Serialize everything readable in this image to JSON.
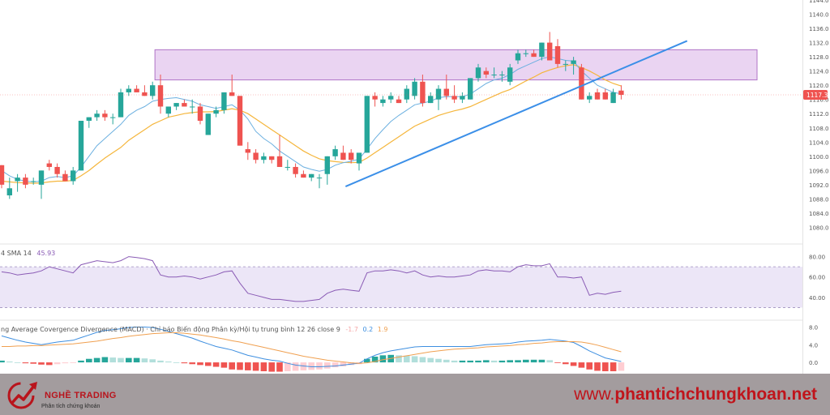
{
  "chart_data": [
    {
      "type": "candlestick",
      "panel": "price",
      "ylim": [
        1076,
        1144
      ],
      "yticks": [
        "1144.0",
        "1140.0",
        "1136.0",
        "1132.0",
        "1128.0",
        "1124.0",
        "1120.0",
        "1116.0",
        "1112.0",
        "1108.0",
        "1104.0",
        "1100.0",
        "1096.0",
        "1092.0",
        "1088.0",
        "1084.0",
        "1080.0"
      ],
      "last_price_label": "1117.3",
      "last_price": 1117.3,
      "candles": [
        {
          "o": 1097.5,
          "h": 1097.5,
          "l": 1091,
          "c": 1092
        },
        {
          "o": 1089,
          "h": 1094,
          "l": 1088,
          "c": 1091
        },
        {
          "o": 1093,
          "h": 1095,
          "l": 1090,
          "c": 1094
        },
        {
          "o": 1094,
          "h": 1095,
          "l": 1091,
          "c": 1092
        },
        {
          "o": 1093,
          "h": 1094,
          "l": 1092,
          "c": 1093
        },
        {
          "o": 1092,
          "h": 1096,
          "l": 1088,
          "c": 1096
        },
        {
          "o": 1098,
          "h": 1099,
          "l": 1096,
          "c": 1097
        },
        {
          "o": 1097,
          "h": 1098,
          "l": 1094,
          "c": 1095
        },
        {
          "o": 1095,
          "h": 1096,
          "l": 1093,
          "c": 1093
        },
        {
          "o": 1093,
          "h": 1097,
          "l": 1092,
          "c": 1096
        },
        {
          "o": 1096,
          "h": 1110,
          "l": 1096,
          "c": 1110
        },
        {
          "o": 1110,
          "h": 1111,
          "l": 1108,
          "c": 1111
        },
        {
          "o": 1111,
          "h": 1113,
          "l": 1110,
          "c": 1112
        },
        {
          "o": 1112,
          "h": 1113,
          "l": 1110,
          "c": 1111
        },
        {
          "o": 1111,
          "h": 1112,
          "l": 1109,
          "c": 1111
        },
        {
          "o": 1111,
          "h": 1119,
          "l": 1111,
          "c": 1118
        },
        {
          "o": 1118,
          "h": 1120,
          "l": 1117,
          "c": 1119
        },
        {
          "o": 1119,
          "h": 1120,
          "l": 1118,
          "c": 1118
        },
        {
          "o": 1118,
          "h": 1120,
          "l": 1117,
          "c": 1117
        },
        {
          "o": 1117,
          "h": 1121,
          "l": 1116,
          "c": 1120
        },
        {
          "o": 1120,
          "h": 1123,
          "l": 1112,
          "c": 1114
        },
        {
          "o": 1112,
          "h": 1114,
          "l": 1111,
          "c": 1114
        },
        {
          "o": 1114,
          "h": 1115,
          "l": 1113,
          "c": 1115
        },
        {
          "o": 1115,
          "h": 1116,
          "l": 1114,
          "c": 1114
        },
        {
          "o": 1114,
          "h": 1116,
          "l": 1112,
          "c": 1114
        },
        {
          "o": 1114,
          "h": 1115,
          "l": 1109,
          "c": 1110
        },
        {
          "o": 1106,
          "h": 1112,
          "l": 1106,
          "c": 1112
        },
        {
          "o": 1112,
          "h": 1114,
          "l": 1111,
          "c": 1113
        },
        {
          "o": 1113,
          "h": 1118,
          "l": 1112,
          "c": 1118
        },
        {
          "o": 1118,
          "h": 1123,
          "l": 1117,
          "c": 1117
        },
        {
          "o": 1117,
          "h": 1117,
          "l": 1103,
          "c": 1103
        },
        {
          "o": 1102,
          "h": 1104,
          "l": 1099,
          "c": 1101
        },
        {
          "o": 1101,
          "h": 1102,
          "l": 1098,
          "c": 1099
        },
        {
          "o": 1099,
          "h": 1101,
          "l": 1098,
          "c": 1100
        },
        {
          "o": 1100,
          "h": 1100,
          "l": 1098,
          "c": 1099
        },
        {
          "o": 1100,
          "h": 1106,
          "l": 1097,
          "c": 1097
        },
        {
          "o": 1097,
          "h": 1099,
          "l": 1096,
          "c": 1097
        },
        {
          "o": 1097,
          "h": 1098,
          "l": 1094,
          "c": 1095
        },
        {
          "o": 1095,
          "h": 1096,
          "l": 1094,
          "c": 1094
        },
        {
          "o": 1094,
          "h": 1095,
          "l": 1093,
          "c": 1095
        },
        {
          "o": 1094,
          "h": 1095,
          "l": 1091,
          "c": 1094
        },
        {
          "o": 1095,
          "h": 1100,
          "l": 1092,
          "c": 1100
        },
        {
          "o": 1100,
          "h": 1103,
          "l": 1099,
          "c": 1102
        },
        {
          "o": 1101,
          "h": 1103,
          "l": 1099,
          "c": 1099
        },
        {
          "o": 1101,
          "h": 1102,
          "l": 1098,
          "c": 1099
        },
        {
          "o": 1098,
          "h": 1101,
          "l": 1096,
          "c": 1101
        },
        {
          "o": 1101,
          "h": 1117,
          "l": 1101,
          "c": 1117
        },
        {
          "o": 1117,
          "h": 1118,
          "l": 1114,
          "c": 1116
        },
        {
          "o": 1115,
          "h": 1117,
          "l": 1114,
          "c": 1116
        },
        {
          "o": 1116,
          "h": 1118,
          "l": 1115,
          "c": 1117
        },
        {
          "o": 1116,
          "h": 1117,
          "l": 1115,
          "c": 1115
        },
        {
          "o": 1116,
          "h": 1120,
          "l": 1115,
          "c": 1119
        },
        {
          "o": 1117,
          "h": 1122,
          "l": 1116,
          "c": 1121
        },
        {
          "o": 1121,
          "h": 1123,
          "l": 1114,
          "c": 1115
        },
        {
          "o": 1115,
          "h": 1118,
          "l": 1115,
          "c": 1117
        },
        {
          "o": 1116,
          "h": 1120,
          "l": 1113,
          "c": 1119
        },
        {
          "o": 1119,
          "h": 1123,
          "l": 1116,
          "c": 1117
        },
        {
          "o": 1117,
          "h": 1120,
          "l": 1115,
          "c": 1116
        },
        {
          "o": 1116,
          "h": 1118,
          "l": 1115,
          "c": 1117
        },
        {
          "o": 1116,
          "h": 1122,
          "l": 1116,
          "c": 1122
        },
        {
          "o": 1122,
          "h": 1126,
          "l": 1121,
          "c": 1125
        },
        {
          "o": 1124,
          "h": 1125,
          "l": 1122,
          "c": 1123
        },
        {
          "o": 1123,
          "h": 1125,
          "l": 1122,
          "c": 1123
        },
        {
          "o": 1123,
          "h": 1124,
          "l": 1121,
          "c": 1123
        },
        {
          "o": 1121,
          "h": 1126,
          "l": 1120,
          "c": 1125
        },
        {
          "o": 1127,
          "h": 1130,
          "l": 1126,
          "c": 1129
        },
        {
          "o": 1129,
          "h": 1130,
          "l": 1128,
          "c": 1129
        },
        {
          "o": 1129,
          "h": 1130,
          "l": 1128,
          "c": 1128
        },
        {
          "o": 1128,
          "h": 1132,
          "l": 1127,
          "c": 1132
        },
        {
          "o": 1132,
          "h": 1135,
          "l": 1127,
          "c": 1127
        },
        {
          "o": 1131,
          "h": 1133,
          "l": 1125,
          "c": 1126
        },
        {
          "o": 1126,
          "h": 1127,
          "l": 1124,
          "c": 1126
        },
        {
          "o": 1126,
          "h": 1128,
          "l": 1123,
          "c": 1127
        },
        {
          "o": 1125,
          "h": 1126,
          "l": 1116,
          "c": 1116
        },
        {
          "o": 1116,
          "h": 1118,
          "l": 1115,
          "c": 1117
        },
        {
          "o": 1118,
          "h": 1119,
          "l": 1116,
          "c": 1116
        },
        {
          "o": 1118,
          "h": 1119,
          "l": 1116,
          "c": 1116
        },
        {
          "o": 1115,
          "h": 1119,
          "l": 1115,
          "c": 1118
        },
        {
          "o": 1118.5,
          "h": 1120,
          "l": 1116,
          "c": 1117.3
        }
      ],
      "ma_short": [
        1096,
        1094.5,
        1093.5,
        1093,
        1092.8,
        1093,
        1094,
        1094.3,
        1094,
        1094.5,
        1097,
        1100,
        1103,
        1105,
        1107,
        1109,
        1111.5,
        1113,
        1114,
        1115.5,
        1116,
        1116.3,
        1116.5,
        1116,
        1115.5,
        1114.5,
        1114,
        1113.5,
        1114,
        1114.5,
        1113,
        1110.5,
        1107,
        1105,
        1103.5,
        1101.5,
        1100,
        1098.5,
        1097,
        1096.3,
        1095.8,
        1096.3,
        1097.5,
        1098.2,
        1098.6,
        1099.2,
        1102,
        1105,
        1107.5,
        1109.8,
        1111.5,
        1113,
        1114.5,
        1115,
        1115.5,
        1116.5,
        1116.8,
        1116.8,
        1116.8,
        1117.5,
        1119,
        1120.5,
        1121.5,
        1122,
        1123,
        1124.5,
        1125.5,
        1126.5,
        1127.5,
        1128,
        1127.5,
        1127,
        1126.8,
        1124,
        1122,
        1120,
        1119,
        1118,
        1117.6
      ],
      "ma_long": [
        1093,
        1092.8,
        1092.6,
        1092.5,
        1092.4,
        1092.5,
        1092.8,
        1093,
        1093,
        1093.2,
        1094.5,
        1096,
        1097.8,
        1099.5,
        1101,
        1102.5,
        1104.5,
        1106,
        1107.5,
        1109,
        1110,
        1111,
        1111.5,
        1112,
        1112.3,
        1112.5,
        1112.5,
        1112.6,
        1113,
        1113.4,
        1113,
        1112,
        1110.5,
        1109,
        1107.5,
        1106,
        1104.5,
        1103,
        1101.5,
        1100.3,
        1099.3,
        1098.8,
        1098.5,
        1098.3,
        1098.2,
        1098.3,
        1099.5,
        1101,
        1102.5,
        1104,
        1105.5,
        1107,
        1108.5,
        1109.5,
        1110.5,
        1111.5,
        1112.2,
        1112.8,
        1113.3,
        1114,
        1115,
        1116,
        1117,
        1118,
        1118.8,
        1120,
        1121.2,
        1122.3,
        1123.5,
        1124.3,
        1125,
        1125.5,
        1125.8,
        1125,
        1124,
        1122.8,
        1121.5,
        1120.5,
        1119.8
      ],
      "zone": {
        "from_index": 19.3,
        "to_index": 109,
        "top": 1130,
        "bottom": 1121.5
      },
      "trendline": {
        "from": [
          43.3,
          1091.5
        ],
        "to": [
          86.3,
          1132.5
        ]
      }
    },
    {
      "type": "line",
      "panel": "rsi",
      "label": "4 SMA 14",
      "value_label": "45.93",
      "ylim": [
        20,
        90
      ],
      "yticks": [
        "80.00",
        "60.00",
        "40.00"
      ],
      "band": [
        70,
        30
      ],
      "values": [
        65,
        64,
        62,
        63,
        64,
        66,
        70,
        68,
        66,
        64,
        72,
        74,
        76,
        75,
        74,
        76,
        80,
        79,
        78,
        76,
        62,
        60,
        60,
        61,
        60,
        58,
        60,
        62,
        65,
        66,
        54,
        44,
        42,
        40,
        38,
        38,
        37,
        36,
        36,
        37,
        38,
        44,
        47,
        48,
        47,
        46,
        64,
        66,
        66,
        67,
        66,
        64,
        66,
        62,
        60,
        61,
        60,
        60,
        61,
        62,
        66,
        67,
        66,
        66,
        65,
        70,
        72,
        71,
        71,
        73,
        60,
        60,
        59,
        60,
        42,
        44,
        43,
        45,
        46
      ],
      "fill_color": "#ece6f7",
      "line_color": "#8a5bb5"
    },
    {
      "type": "line+bar",
      "panel": "macd",
      "label": "ng Average Covergence Divergence (MACD) · Chỉ báo Biến động Phân kỳ/Hội tụ trung bình 12 26 close 9",
      "value_labels": [
        "-1.7",
        "0.2",
        "1.9"
      ],
      "ylim": [
        -2,
        9
      ],
      "yticks": [
        "8.0",
        "4.0",
        "0.0"
      ],
      "macd": [
        6,
        5.5,
        5,
        4.6,
        4.3,
        4,
        4.3,
        4.6,
        4.8,
        5,
        5.6,
        6.2,
        6.8,
        7.2,
        7.4,
        7.6,
        7.9,
        8,
        8,
        7.9,
        7.5,
        7,
        6.5,
        6,
        5.5,
        4.8,
        4.2,
        3.6,
        3.2,
        2.8,
        2.2,
        1.6,
        1.2,
        0.8,
        0.5,
        0.3,
        -0.2,
        -0.6,
        -0.8,
        -1,
        -1,
        -0.9,
        -0.8,
        -0.6,
        -0.4,
        -0.2,
        0.8,
        1.6,
        2.2,
        2.6,
        2.9,
        3.2,
        3.5,
        3.6,
        3.6,
        3.6,
        3.6,
        3.6,
        3.6,
        3.6,
        3.8,
        4,
        4.1,
        4.2,
        4.3,
        4.6,
        4.8,
        4.9,
        5,
        5.2,
        5,
        4.8,
        4.5,
        3.6,
        2.6,
        1.8,
        1,
        0.6,
        0.2
      ],
      "signal": [
        3.6,
        3.6,
        3.7,
        3.7,
        3.8,
        3.8,
        3.9,
        4,
        4.1,
        4.2,
        4.4,
        4.6,
        4.8,
        5.1,
        5.4,
        5.6,
        5.9,
        6.1,
        6.3,
        6.5,
        6.6,
        6.7,
        6.7,
        6.6,
        6.4,
        6.2,
        5.9,
        5.6,
        5.3,
        4.9,
        4.6,
        4.2,
        3.8,
        3.4,
        3,
        2.6,
        2.2,
        1.8,
        1.4,
        1.1,
        0.8,
        0.5,
        0.3,
        0.1,
        -0.1,
        -0.2,
        -0.1,
        0.2,
        0.6,
        0.9,
        1.2,
        1.5,
        1.8,
        2.1,
        2.4,
        2.6,
        2.8,
        3,
        3.1,
        3.2,
        3.3,
        3.5,
        3.6,
        3.7,
        3.8,
        4,
        4.1,
        4.3,
        4.4,
        4.6,
        4.7,
        4.7,
        4.7,
        4.6,
        4.3,
        3.9,
        3.4,
        2.9,
        2.4
      ],
      "hist": [
        0.4,
        0.2,
        0,
        -0.2,
        -0.3,
        -0.5,
        -0.6,
        -0.4,
        -0.2,
        -0.1,
        0.4,
        0.8,
        1,
        1.2,
        1.1,
        1,
        1,
        1,
        0.9,
        0.7,
        0.4,
        0.2,
        0,
        -0.2,
        -0.4,
        -0.6,
        -0.8,
        -1,
        -1.2,
        -1.6,
        -1.7,
        -1.8,
        -1.9,
        -2,
        -2.1,
        -2.1,
        -2,
        -1.9,
        -1.8,
        -1.7,
        -1.6,
        -1.4,
        -1.1,
        -0.9,
        -0.6,
        -0.4,
        0.8,
        1.3,
        1.6,
        1.7,
        1.6,
        1.5,
        1.4,
        1.2,
        1,
        0.8,
        0.6,
        0.4,
        0.4,
        0.4,
        0.4,
        0.5,
        0.4,
        0.4,
        0.5,
        0.5,
        0.6,
        0.6,
        0.6,
        0.5,
        -0.1,
        -0.4,
        -0.8,
        -1.2,
        -1.6,
        -1.9,
        -2,
        -2,
        -1.9
      ],
      "macd_color": "#3e8fe0",
      "signal_color": "#f0a050"
    }
  ],
  "colors": {
    "bull": "#26a69a",
    "bear": "#ef5350",
    "ma_short": "#6cb0e0",
    "ma_long": "#f5b63c",
    "zone_fill": "#e6cdf0",
    "zone_stroke": "#b074c7",
    "trendline": "#3b8fe8",
    "price_tag": "#ef5350"
  },
  "footer": {
    "brand_name": "NGHỀ TRADING",
    "brand_tagline": "Phân tích chứng khoán",
    "url_prefix": "www.",
    "url_main": "phantichchungkhoan.net",
    "logo": "arrow-growth-logo"
  }
}
